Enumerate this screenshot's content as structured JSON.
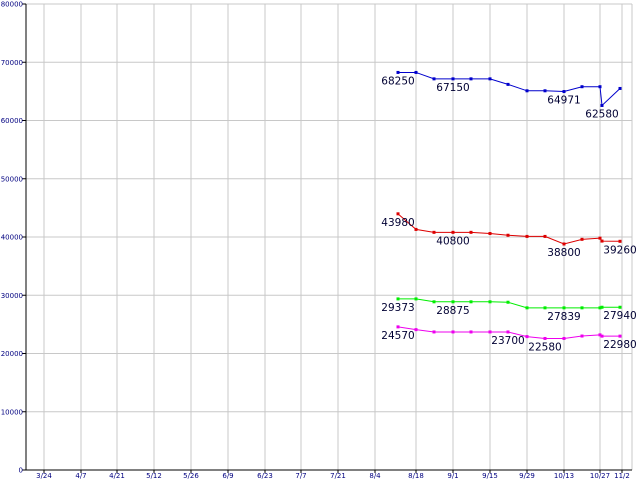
{
  "chart_data": {
    "type": "line",
    "title": "",
    "xlabel": "",
    "ylabel": "",
    "ylim": [
      0,
      80000
    ],
    "grid": true,
    "y_ticks": [
      0,
      10000,
      20000,
      30000,
      40000,
      50000,
      60000,
      70000,
      80000
    ],
    "x_ticks": [
      "3/24",
      "4/7",
      "4/21",
      "5/12",
      "5/26",
      "6/9",
      "6/23",
      "7/7",
      "7/21",
      "8/4",
      "8/18",
      "9/1",
      "9/15",
      "9/29",
      "10/13",
      "10/27",
      "11/2"
    ],
    "x": [
      "8/11",
      "8/18",
      "8/22",
      "8/29",
      "9/1",
      "9/8",
      "9/15",
      "9/22",
      "9/29",
      "10/6",
      "10/10",
      "10/17",
      "10/24",
      "10/31"
    ],
    "series": [
      {
        "color": "#0000cc",
        "values": [
          68250,
          68250,
          67150,
          67150,
          67150,
          67150,
          66200,
          65100,
          65100,
          64971,
          65800,
          65800,
          62580,
          65500
        ]
      },
      {
        "color": "#dd0000",
        "values": [
          43980,
          41300,
          40800,
          40800,
          40800,
          40600,
          40300,
          40100,
          40100,
          38800,
          39600,
          39800,
          39300,
          39260
        ]
      },
      {
        "color": "#00ee00",
        "values": [
          29373,
          29373,
          28875,
          28875,
          28875,
          28875,
          28800,
          27839,
          27839,
          27839,
          27839,
          27839,
          27940,
          27940
        ]
      },
      {
        "color": "#ee00ee",
        "values": [
          24570,
          24100,
          23700,
          23700,
          23700,
          23700,
          23700,
          22900,
          22580,
          22580,
          23000,
          23200,
          22980,
          22980
        ]
      }
    ],
    "data_labels": [
      {
        "series": 0,
        "index": 0,
        "text": "68250"
      },
      {
        "series": 0,
        "index": 3,
        "text": "67150"
      },
      {
        "series": 0,
        "index": 9,
        "text": "64971"
      },
      {
        "series": 0,
        "index": 12,
        "text": "62580"
      },
      {
        "series": 1,
        "index": 0,
        "text": "43980"
      },
      {
        "series": 1,
        "index": 3,
        "text": "40800"
      },
      {
        "series": 1,
        "index": 9,
        "text": "38800"
      },
      {
        "series": 1,
        "index": 13,
        "text": "39260"
      },
      {
        "series": 2,
        "index": 0,
        "text": "29373"
      },
      {
        "series": 2,
        "index": 3,
        "text": "28875"
      },
      {
        "series": 2,
        "index": 9,
        "text": "27839"
      },
      {
        "series": 2,
        "index": 13,
        "text": "27940"
      },
      {
        "series": 3,
        "index": 0,
        "text": "24570"
      },
      {
        "series": 3,
        "index": 6,
        "text": "23700"
      },
      {
        "series": 3,
        "index": 8,
        "text": "22580"
      },
      {
        "series": 3,
        "index": 13,
        "text": "22980"
      }
    ]
  }
}
